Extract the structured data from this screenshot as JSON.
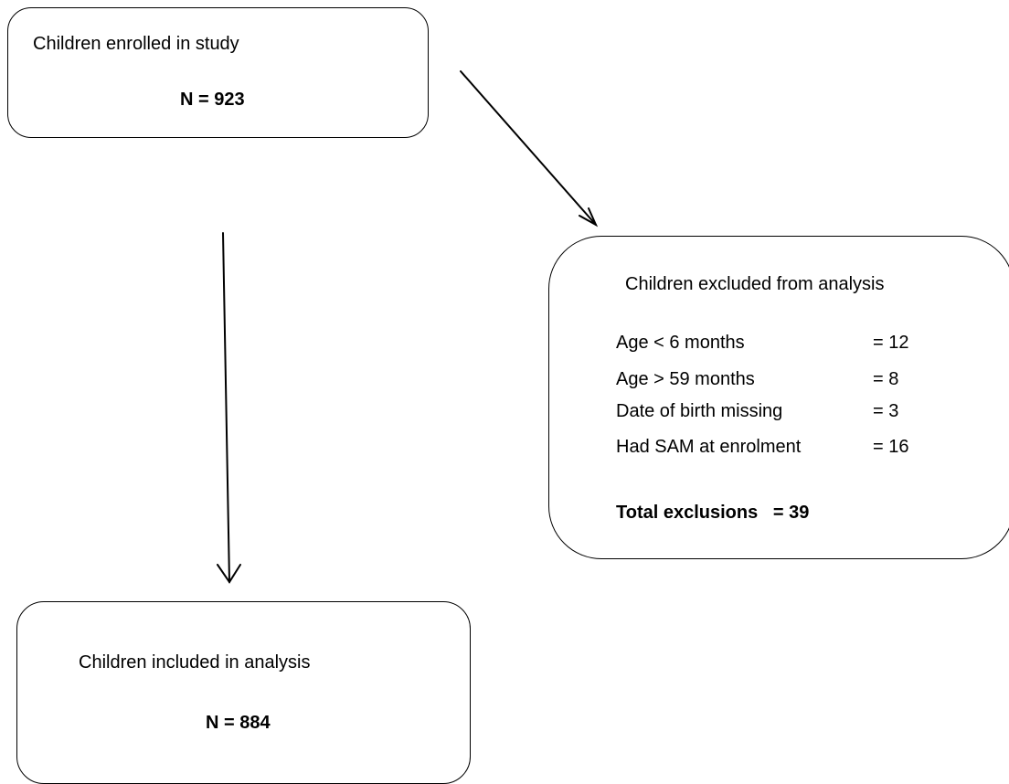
{
  "enrolled": {
    "title": "Children enrolled in study",
    "count": "N = 923"
  },
  "excluded": {
    "title": "Children excluded from analysis",
    "rows": [
      {
        "label": "Age < 6 months",
        "value": "= 12"
      },
      {
        "label": "Age > 59 months",
        "value": "= 8"
      },
      {
        "label": "Date of birth missing",
        "value": "= 3"
      },
      {
        "label": "Had SAM at enrolment",
        "value": "= 16"
      }
    ],
    "total": "Total exclusions   = 39"
  },
  "included": {
    "title": "Children included in analysis",
    "count": "N = 884"
  }
}
